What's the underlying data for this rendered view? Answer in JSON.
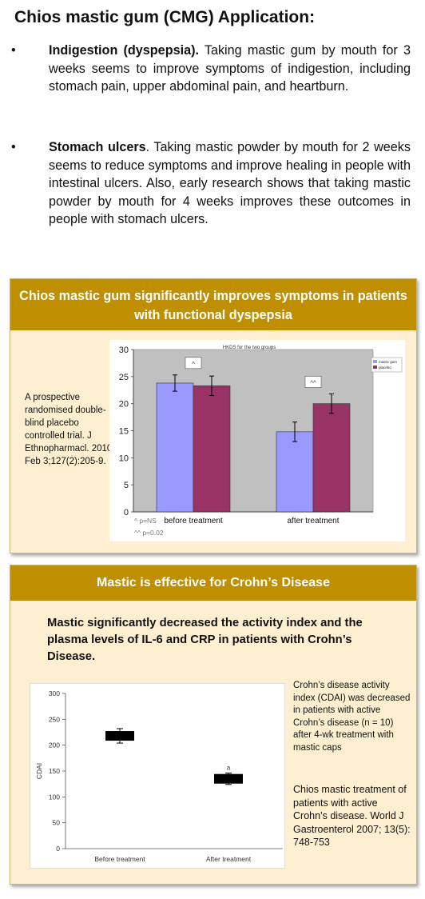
{
  "title": "Chios mastic gum (CMG) Application:",
  "bullets": [
    {
      "marker": "•",
      "bold": "Indigestion (dyspepsia).",
      "text": " Taking mastic gum by mouth for 3 weeks seems to improve symptoms of indigestion, including stomach pain, upper abdominal pain, and heartburn."
    },
    {
      "marker": "•",
      "bold": "Stomach ulcers",
      "text": ". Taking mastic powder by mouth for 2 weeks seems to reduce symptoms and improve healing in people with intestinal ulcers. Also, early research shows that taking mastic powder by mouth for 4 weeks improves these outcomes in people with stomach ulcers."
    }
  ],
  "panel1": {
    "heading": "Chios mastic gum significantly improves symptoms in patients with functional dyspepsia",
    "citation": "A prospective randomised double-blind placebo controlled trial. J Ethnopharmacl. 2010 Feb 3;127(2):205-9.",
    "footnote1": "^ p=NS",
    "footnote2": "^^ p=0.02",
    "colors": {
      "plot_bg": "#c0c0c0",
      "mastic": "#9999ff",
      "placebo": "#993366"
    }
  },
  "panel2": {
    "heading": "Mastic is effective for Crohn’s Disease",
    "lead": "Mastic significantly decreased the activity index and the plasma levels of IL-6 and CRP in patients with Crohn’s Disease.",
    "note": "Crohn’s disease activity index (CDAI) was decreased in patients with active Crohn’s disease (n = 10) after 4-wk treatment with mastic caps",
    "citation": "Chios mastic treatment of patients with active Crohn’s disease. World J Gastroenterol 2007; 13(5): 748-753"
  },
  "chart_data": [
    {
      "type": "bar",
      "title": "HKDS for the two groups",
      "categories": [
        "before treatment",
        "after treatment"
      ],
      "series": [
        {
          "name": "mastic gum",
          "values": [
            23.8,
            14.8
          ],
          "errors": [
            1.5,
            1.8
          ]
        },
        {
          "name": "placebo",
          "values": [
            23.3,
            20.0
          ],
          "errors": [
            1.8,
            1.8
          ]
        }
      ],
      "annotations": [
        "^",
        "^^"
      ],
      "ylim": [
        0,
        30
      ],
      "yticks": [
        "0",
        "5",
        "10",
        "15",
        "20",
        "25",
        "30"
      ],
      "legend": "top-right",
      "grid": false
    },
    {
      "type": "scatter",
      "categories": [
        "Before treatment",
        "After treatment"
      ],
      "values": [
        218,
        135
      ],
      "errors": [
        14,
        11
      ],
      "annotations": [
        "",
        "a"
      ],
      "ylabel": "CDAI",
      "ylim": [
        0,
        300
      ],
      "yticks": [
        "0",
        "50",
        "100",
        "150",
        "200",
        "250",
        "300"
      ],
      "grid": false
    }
  ]
}
